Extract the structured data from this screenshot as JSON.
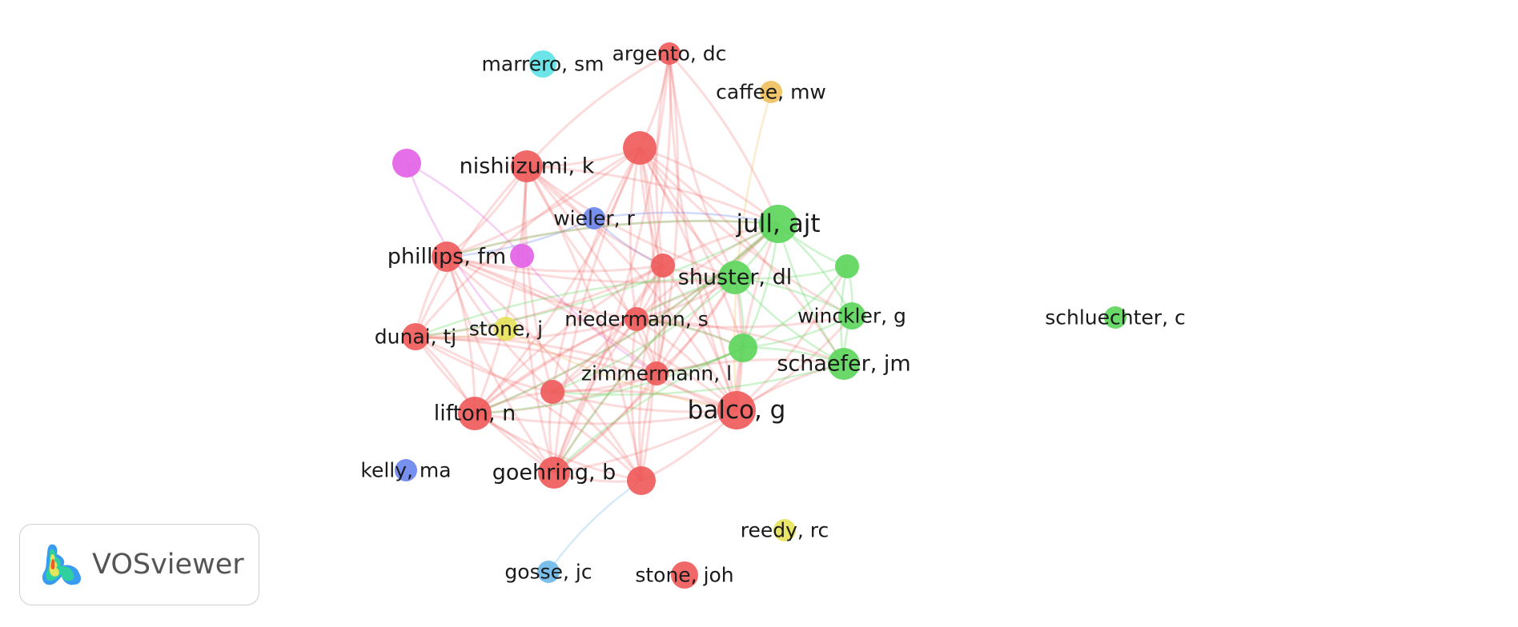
{
  "app": {
    "name": "VOSviewer"
  },
  "colors": {
    "red": "#ef5b5b",
    "green": "#5dd65d",
    "blue": "#6b86ee",
    "magenta": "#e263e6",
    "cyan": "#5fe3e6",
    "orange": "#f0c060",
    "yellow": "#e6e35c",
    "lightblue": "#6fb8e8"
  },
  "nodes": [
    {
      "id": "argento",
      "label": "argento, dc",
      "color": "red"
    },
    {
      "id": "marrero",
      "label": "marrero, sm",
      "color": "cyan"
    },
    {
      "id": "caffee",
      "label": "caffee, mw",
      "color": "orange"
    },
    {
      "id": "nishiizumi",
      "label": "nishiizumi, k",
      "color": "red"
    },
    {
      "id": "unl_red_top",
      "label": "",
      "color": "red"
    },
    {
      "id": "unl_magenta_top",
      "label": "",
      "color": "magenta"
    },
    {
      "id": "wieler",
      "label": "wieler, r",
      "color": "blue"
    },
    {
      "id": "jull",
      "label": "jull, ajt",
      "color": "green"
    },
    {
      "id": "phillips",
      "label": "phillips, fm",
      "color": "red"
    },
    {
      "id": "unl_magenta_mid",
      "label": "",
      "color": "magenta"
    },
    {
      "id": "unl_red_mid",
      "label": "",
      "color": "red"
    },
    {
      "id": "shuster",
      "label": "shuster, dl",
      "color": "green"
    },
    {
      "id": "unl_green_right",
      "label": "",
      "color": "green"
    },
    {
      "id": "winckler",
      "label": "winckler, g",
      "color": "green"
    },
    {
      "id": "schluechter",
      "label": "schluechter, c",
      "color": "green"
    },
    {
      "id": "niedermann",
      "label": "niedermann, s",
      "color": "red"
    },
    {
      "id": "dunai",
      "label": "dunai, tj",
      "color": "red"
    },
    {
      "id": "stone_j",
      "label": "stone, j",
      "color": "yellow"
    },
    {
      "id": "unl_green_mid",
      "label": "",
      "color": "green"
    },
    {
      "id": "schaefer",
      "label": "schaefer, jm",
      "color": "green"
    },
    {
      "id": "zimmermann",
      "label": "zimmermann, l",
      "color": "red"
    },
    {
      "id": "unl_red_low",
      "label": "",
      "color": "red"
    },
    {
      "id": "lifton",
      "label": "lifton, n",
      "color": "red"
    },
    {
      "id": "balco",
      "label": "balco, g",
      "color": "red"
    },
    {
      "id": "kelly",
      "label": "kelly, ma",
      "color": "blue"
    },
    {
      "id": "goehring",
      "label": "goehring, b",
      "color": "red"
    },
    {
      "id": "unl_red_bottom",
      "label": "",
      "color": "red"
    },
    {
      "id": "reedy",
      "label": "reedy, rc",
      "color": "yellow"
    },
    {
      "id": "gosse",
      "label": "gosse, jc",
      "color": "lightblue"
    },
    {
      "id": "stone_joh",
      "label": "stone, joh",
      "color": "red"
    }
  ],
  "links": [
    [
      "argento",
      "unl_red_top",
      "red"
    ],
    [
      "argento",
      "nishiizumi",
      "red"
    ],
    [
      "argento",
      "niedermann",
      "red"
    ],
    [
      "argento",
      "balco",
      "red"
    ],
    [
      "argento",
      "zimmermann",
      "red"
    ],
    [
      "argento",
      "unl_red_mid",
      "red"
    ],
    [
      "argento",
      "jull",
      "red"
    ],
    [
      "argento",
      "shuster",
      "red"
    ],
    [
      "argento",
      "goehring",
      "red"
    ],
    [
      "caffee",
      "balco",
      "orange"
    ],
    [
      "unl_magenta_top",
      "unl_magenta_mid",
      "magenta"
    ],
    [
      "unl_magenta_top",
      "stone_j",
      "magenta"
    ],
    [
      "wieler",
      "jull",
      "blue"
    ],
    [
      "wieler",
      "unl_red_mid",
      "blue"
    ],
    [
      "wieler",
      "phillips",
      "blue"
    ],
    [
      "unl_magenta_mid",
      "zimmermann",
      "magenta"
    ],
    [
      "gosse",
      "unl_red_bottom",
      "lightblue"
    ],
    [
      "stone_j",
      "balco",
      "orange"
    ],
    [
      "stone_j",
      "dunai",
      "orange"
    ],
    [
      "nishiizumi",
      "unl_red_top",
      "red"
    ],
    [
      "nishiizumi",
      "phillips",
      "red"
    ],
    [
      "nishiizumi",
      "dunai",
      "red"
    ],
    [
      "nishiizumi",
      "lifton",
      "red"
    ],
    [
      "nishiizumi",
      "goehring",
      "red"
    ],
    [
      "nishiizumi",
      "balco",
      "red"
    ],
    [
      "nishiizumi",
      "niedermann",
      "red"
    ],
    [
      "nishiizumi",
      "zimmermann",
      "red"
    ],
    [
      "nishiizumi",
      "unl_red_mid",
      "red"
    ],
    [
      "nishiizumi",
      "unl_red_bottom",
      "red"
    ],
    [
      "nishiizumi",
      "unl_red_low",
      "red"
    ],
    [
      "nishiizumi",
      "jull",
      "red"
    ],
    [
      "nishiizumi",
      "shuster",
      "red"
    ],
    [
      "unl_red_top",
      "phillips",
      "red"
    ],
    [
      "unl_red_top",
      "dunai",
      "red"
    ],
    [
      "unl_red_top",
      "lifton",
      "red"
    ],
    [
      "unl_red_top",
      "goehring",
      "red"
    ],
    [
      "unl_red_top",
      "balco",
      "red"
    ],
    [
      "unl_red_top",
      "niedermann",
      "red"
    ],
    [
      "unl_red_top",
      "zimmermann",
      "red"
    ],
    [
      "unl_red_top",
      "unl_red_mid",
      "red"
    ],
    [
      "unl_red_top",
      "unl_red_bottom",
      "red"
    ],
    [
      "unl_red_top",
      "unl_red_low",
      "red"
    ],
    [
      "unl_red_top",
      "jull",
      "red"
    ],
    [
      "unl_red_top",
      "shuster",
      "red"
    ],
    [
      "unl_red_top",
      "schaefer",
      "red"
    ],
    [
      "unl_red_top",
      "winckler",
      "red"
    ],
    [
      "unl_red_top",
      "unl_green_mid",
      "red"
    ],
    [
      "phillips",
      "dunai",
      "red"
    ],
    [
      "phillips",
      "lifton",
      "red"
    ],
    [
      "phillips",
      "goehring",
      "red"
    ],
    [
      "phillips",
      "balco",
      "red"
    ],
    [
      "phillips",
      "niedermann",
      "red"
    ],
    [
      "phillips",
      "zimmermann",
      "red"
    ],
    [
      "phillips",
      "unl_red_mid",
      "red"
    ],
    [
      "phillips",
      "unl_red_bottom",
      "red"
    ],
    [
      "phillips",
      "unl_red_low",
      "red"
    ],
    [
      "phillips",
      "jull",
      "red"
    ],
    [
      "phillips",
      "shuster",
      "red"
    ],
    [
      "dunai",
      "lifton",
      "red"
    ],
    [
      "dunai",
      "goehring",
      "red"
    ],
    [
      "dunai",
      "balco",
      "red"
    ],
    [
      "dunai",
      "niedermann",
      "red"
    ],
    [
      "dunai",
      "zimmermann",
      "red"
    ],
    [
      "dunai",
      "unl_red_mid",
      "red"
    ],
    [
      "dunai",
      "unl_red_bottom",
      "red"
    ],
    [
      "dunai",
      "unl_red_low",
      "red"
    ],
    [
      "lifton",
      "goehring",
      "red"
    ],
    [
      "lifton",
      "balco",
      "red"
    ],
    [
      "lifton",
      "niedermann",
      "red"
    ],
    [
      "lifton",
      "zimmermann",
      "red"
    ],
    [
      "lifton",
      "unl_red_mid",
      "red"
    ],
    [
      "lifton",
      "unl_red_bottom",
      "red"
    ],
    [
      "lifton",
      "unl_red_low",
      "red"
    ],
    [
      "lifton",
      "jull",
      "red"
    ],
    [
      "lifton",
      "shuster",
      "red"
    ],
    [
      "goehring",
      "balco",
      "red"
    ],
    [
      "goehring",
      "niedermann",
      "red"
    ],
    [
      "goehring",
      "zimmermann",
      "red"
    ],
    [
      "goehring",
      "unl_red_mid",
      "red"
    ],
    [
      "goehring",
      "unl_red_bottom",
      "red"
    ],
    [
      "goehring",
      "unl_red_low",
      "red"
    ],
    [
      "goehring",
      "shuster",
      "red"
    ],
    [
      "goehring",
      "jull",
      "red"
    ],
    [
      "balco",
      "niedermann",
      "red"
    ],
    [
      "balco",
      "zimmermann",
      "red"
    ],
    [
      "balco",
      "unl_red_mid",
      "red"
    ],
    [
      "balco",
      "unl_red_bottom",
      "red"
    ],
    [
      "balco",
      "unl_red_low",
      "red"
    ],
    [
      "balco",
      "jull",
      "red"
    ],
    [
      "balco",
      "shuster",
      "red"
    ],
    [
      "balco",
      "schaefer",
      "red"
    ],
    [
      "balco",
      "winckler",
      "red"
    ],
    [
      "balco",
      "unl_green_mid",
      "red"
    ],
    [
      "balco",
      "unl_green_right",
      "red"
    ],
    [
      "niedermann",
      "zimmermann",
      "red"
    ],
    [
      "niedermann",
      "unl_red_mid",
      "red"
    ],
    [
      "niedermann",
      "unl_red_low",
      "red"
    ],
    [
      "niedermann",
      "unl_red_bottom",
      "red"
    ],
    [
      "niedermann",
      "jull",
      "red"
    ],
    [
      "niedermann",
      "shuster",
      "red"
    ],
    [
      "niedermann",
      "schaefer",
      "red"
    ],
    [
      "niedermann",
      "winckler",
      "red"
    ],
    [
      "niedermann",
      "unl_green_mid",
      "red"
    ],
    [
      "zimmermann",
      "unl_red_mid",
      "red"
    ],
    [
      "zimmermann",
      "unl_red_low",
      "red"
    ],
    [
      "zimmermann",
      "unl_red_bottom",
      "red"
    ],
    [
      "zimmermann",
      "jull",
      "red"
    ],
    [
      "zimmermann",
      "shuster",
      "red"
    ],
    [
      "zimmermann",
      "schaefer",
      "red"
    ],
    [
      "zimmermann",
      "unl_green_mid",
      "red"
    ],
    [
      "unl_red_mid",
      "unl_red_low",
      "red"
    ],
    [
      "unl_red_mid",
      "unl_red_bottom",
      "red"
    ],
    [
      "unl_red_mid",
      "jull",
      "red"
    ],
    [
      "unl_red_mid",
      "shuster",
      "red"
    ],
    [
      "unl_red_low",
      "unl_red_bottom",
      "red"
    ],
    [
      "unl_red_low",
      "balco",
      "red"
    ],
    [
      "jull",
      "shuster",
      "green"
    ],
    [
      "jull",
      "unl_green_right",
      "green"
    ],
    [
      "jull",
      "winckler",
      "green"
    ],
    [
      "jull",
      "schaefer",
      "green"
    ],
    [
      "jull",
      "unl_green_mid",
      "green"
    ],
    [
      "jull",
      "phillips",
      "green"
    ],
    [
      "jull",
      "dunai",
      "green"
    ],
    [
      "jull",
      "goehring",
      "green"
    ],
    [
      "jull",
      "lifton",
      "green"
    ],
    [
      "shuster",
      "unl_green_right",
      "green"
    ],
    [
      "shuster",
      "winckler",
      "green"
    ],
    [
      "shuster",
      "schaefer",
      "green"
    ],
    [
      "shuster",
      "unl_green_mid",
      "green"
    ],
    [
      "shuster",
      "niedermann",
      "green"
    ],
    [
      "shuster",
      "unl_red_low",
      "green"
    ],
    [
      "shuster",
      "dunai",
      "green"
    ],
    [
      "unl_green_right",
      "winckler",
      "green"
    ],
    [
      "unl_green_right",
      "schaefer",
      "green"
    ],
    [
      "unl_green_right",
      "unl_green_mid",
      "green"
    ],
    [
      "winckler",
      "schaefer",
      "green"
    ],
    [
      "winckler",
      "unl_green_mid",
      "green"
    ],
    [
      "schaefer",
      "unl_green_mid",
      "green"
    ],
    [
      "schaefer",
      "unl_red_low",
      "green"
    ],
    [
      "unl_green_mid",
      "niedermann",
      "green"
    ],
    [
      "unl_green_mid",
      "zimmermann",
      "green"
    ],
    [
      "unl_green_mid",
      "goehring",
      "green"
    ],
    [
      "unl_green_mid",
      "lifton",
      "green"
    ]
  ]
}
